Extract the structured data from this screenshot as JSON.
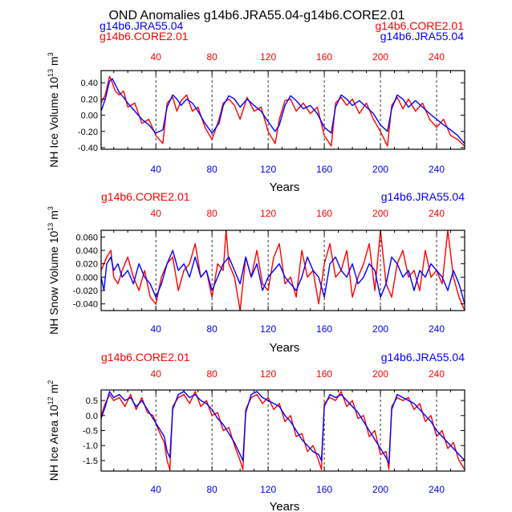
{
  "title": "OND Anomalies g14b6.JRA55.04-g14b6.CORE2.01",
  "colors": {
    "jra": "#0000ff",
    "core": "#ff0000",
    "axis": "#000000",
    "grid": "#000000"
  },
  "chart_data": [
    {
      "type": "line",
      "ylabel_main": "NH Ice Volume 10",
      "ylabel_exp": "13",
      "ylabel_unit": " m",
      "ylabel_unit_exp": "3",
      "xlabel": "Years",
      "xlim": [
        1,
        260
      ],
      "ylim": [
        -0.42,
        0.55
      ],
      "yticks": [
        0.4,
        0.2,
        0.0,
        -0.2,
        -0.4
      ],
      "yticklabels": [
        "0.40",
        "0.20",
        "0.00",
        "-0.20",
        "-0.40"
      ],
      "xticks": [
        40,
        80,
        120,
        160,
        200,
        240
      ],
      "xticklabels": [
        "40",
        "80",
        "120",
        "160",
        "200",
        "240"
      ],
      "vlines": [
        40,
        80,
        120,
        160,
        200,
        240
      ],
      "legend_left": [
        "g14b6.JRA55.04",
        "g14b6.CORE2.01"
      ],
      "legend_right": [
        "g14b6.CORE2.01",
        "g14b6.JRA55.04"
      ],
      "series": [
        {
          "name": "g14b6.JRA55.04",
          "color": "#0000ff",
          "x": [
            1,
            4,
            7,
            9,
            11,
            14,
            17,
            20,
            25,
            30,
            35,
            40,
            45,
            48,
            52,
            55,
            58,
            62,
            66,
            70,
            75,
            80,
            85,
            88,
            92,
            96,
            100,
            105,
            110,
            115,
            120,
            125,
            128,
            132,
            136,
            140,
            145,
            150,
            155,
            160,
            165,
            168,
            172,
            176,
            180,
            185,
            190,
            195,
            200,
            205,
            208,
            212,
            216,
            220,
            225,
            230,
            235,
            240,
            245,
            250,
            255,
            260
          ],
          "y": [
            0.05,
            0.2,
            0.42,
            0.45,
            0.38,
            0.28,
            0.22,
            0.15,
            0.05,
            -0.05,
            -0.12,
            -0.22,
            -0.18,
            0.1,
            0.25,
            0.2,
            0.12,
            0.2,
            0.15,
            0.05,
            -0.1,
            -0.22,
            -0.1,
            0.12,
            0.24,
            0.2,
            0.1,
            0.2,
            0.12,
            0.05,
            -0.08,
            -0.2,
            -0.12,
            0.12,
            0.24,
            0.18,
            0.08,
            0.12,
            0.02,
            -0.15,
            -0.22,
            0.1,
            0.25,
            0.2,
            0.12,
            0.18,
            0.1,
            0.02,
            -0.12,
            -0.2,
            0.08,
            0.25,
            0.2,
            0.1,
            0.18,
            0.1,
            0.02,
            -0.05,
            -0.12,
            -0.18,
            -0.25,
            -0.35
          ]
        },
        {
          "name": "g14b6.CORE2.01",
          "color": "#ff0000",
          "x": [
            1,
            4,
            7,
            9,
            11,
            14,
            17,
            20,
            25,
            30,
            35,
            40,
            45,
            48,
            52,
            55,
            58,
            62,
            66,
            70,
            75,
            80,
            85,
            88,
            92,
            96,
            100,
            105,
            110,
            115,
            120,
            125,
            128,
            132,
            136,
            140,
            145,
            150,
            155,
            160,
            165,
            168,
            172,
            176,
            180,
            185,
            190,
            195,
            200,
            205,
            208,
            212,
            216,
            220,
            225,
            230,
            235,
            240,
            245,
            250,
            255,
            260
          ],
          "y": [
            0.15,
            0.25,
            0.48,
            0.4,
            0.3,
            0.25,
            0.3,
            0.1,
            0.15,
            -0.1,
            -0.05,
            -0.25,
            -0.35,
            0.15,
            0.22,
            0.05,
            0.18,
            0.25,
            0.05,
            0.1,
            -0.15,
            -0.3,
            -0.05,
            0.15,
            0.2,
            0.12,
            -0.05,
            0.22,
            0.05,
            0.1,
            -0.2,
            -0.35,
            -0.05,
            0.18,
            0.2,
            0.05,
            0.15,
            0.02,
            0.1,
            -0.25,
            -0.38,
            0.15,
            0.22,
            0.12,
            0.2,
            0.02,
            0.15,
            -0.05,
            -0.2,
            -0.38,
            0.12,
            0.22,
            0.08,
            0.2,
            0.05,
            0.15,
            -0.05,
            -0.15,
            -0.05,
            -0.25,
            -0.3,
            -0.38
          ]
        }
      ]
    },
    {
      "type": "line",
      "ylabel_main": "NH Snow Volume 10",
      "ylabel_exp": "13",
      "ylabel_unit": " m",
      "ylabel_unit_exp": "3",
      "xlabel": "Years",
      "xlim": [
        1,
        260
      ],
      "ylim": [
        -0.05,
        0.07
      ],
      "yticks": [
        0.06,
        0.04,
        0.02,
        0.0,
        -0.02,
        -0.04
      ],
      "yticklabels": [
        "0.060",
        "0.040",
        "0.020",
        "0.000",
        "-0.020",
        "-0.040"
      ],
      "xticks": [
        40,
        80,
        120,
        160,
        200,
        240
      ],
      "xticklabels": [
        "40",
        "80",
        "120",
        "160",
        "200",
        "240"
      ],
      "vlines": [
        40,
        80,
        120,
        160,
        200,
        240
      ],
      "legend_left": [
        "g14b6.CORE2.01"
      ],
      "legend_right": [
        "g14b6.JRA55.04"
      ],
      "series": [
        {
          "name": "g14b6.JRA55.04",
          "color": "#0000ff",
          "x": [
            1,
            3,
            5,
            8,
            10,
            13,
            16,
            20,
            24,
            28,
            32,
            36,
            40,
            44,
            48,
            52,
            56,
            60,
            64,
            68,
            72,
            76,
            80,
            84,
            88,
            92,
            96,
            100,
            104,
            108,
            112,
            116,
            120,
            124,
            128,
            132,
            136,
            140,
            144,
            148,
            152,
            156,
            160,
            164,
            168,
            172,
            176,
            180,
            184,
            188,
            192,
            196,
            200,
            204,
            208,
            212,
            216,
            220,
            224,
            228,
            232,
            236,
            240,
            244,
            248,
            252,
            256,
            260
          ],
          "y": [
            0.0,
            -0.02,
            0.02,
            0.03,
            0.01,
            0.02,
            0.0,
            0.01,
            -0.01,
            0.02,
            0.0,
            -0.01,
            -0.03,
            -0.01,
            0.02,
            0.04,
            0.01,
            0.02,
            0.0,
            0.03,
            0.0,
            0.01,
            -0.02,
            0.0,
            0.02,
            0.03,
            0.01,
            -0.01,
            0.03,
            0.0,
            0.02,
            -0.02,
            0.0,
            0.01,
            0.02,
            0.0,
            -0.01,
            -0.02,
            0.0,
            0.03,
            0.01,
            0.0,
            -0.03,
            0.02,
            0.03,
            0.01,
            0.0,
            0.02,
            -0.01,
            0.0,
            0.02,
            0.01,
            -0.03,
            -0.01,
            0.03,
            0.02,
            0.0,
            0.01,
            -0.02,
            0.01,
            0.0,
            0.02,
            0.01,
            0.0,
            -0.02,
            0.01,
            -0.01,
            -0.04
          ]
        },
        {
          "name": "g14b6.CORE2.01",
          "color": "#ff0000",
          "x": [
            1,
            3,
            5,
            8,
            10,
            13,
            16,
            20,
            24,
            28,
            32,
            36,
            40,
            44,
            48,
            52,
            56,
            60,
            64,
            68,
            72,
            76,
            80,
            84,
            88,
            90,
            92,
            96,
            100,
            104,
            108,
            112,
            116,
            120,
            124,
            128,
            132,
            136,
            140,
            144,
            148,
            152,
            156,
            160,
            164,
            168,
            172,
            176,
            180,
            184,
            188,
            192,
            196,
            200,
            204,
            208,
            212,
            216,
            220,
            224,
            228,
            232,
            236,
            240,
            244,
            248,
            252,
            256,
            260
          ],
          "y": [
            0.01,
            0.02,
            0.03,
            0.04,
            0.0,
            -0.01,
            0.01,
            0.03,
            0.0,
            -0.02,
            0.01,
            -0.03,
            -0.04,
            0.0,
            0.02,
            0.03,
            -0.02,
            0.01,
            0.02,
            0.05,
            0.0,
            0.01,
            -0.03,
            0.02,
            0.01,
            0.07,
            0.02,
            0.0,
            -0.05,
            0.03,
            0.0,
            0.04,
            -0.01,
            -0.02,
            0.03,
            0.05,
            -0.01,
            0.0,
            -0.03,
            0.04,
            0.0,
            0.01,
            -0.04,
            0.02,
            0.05,
            0.0,
            0.01,
            0.04,
            -0.03,
            0.0,
            0.02,
            0.05,
            -0.02,
            0.07,
            -0.01,
            -0.03,
            0.02,
            0.04,
            0.0,
            0.01,
            -0.02,
            0.04,
            0.0,
            0.01,
            -0.01,
            0.07,
            0.0,
            -0.03,
            -0.05
          ]
        }
      ]
    },
    {
      "type": "line",
      "ylabel_main": "NH Ice Area 10",
      "ylabel_exp": "12",
      "ylabel_unit": " m",
      "ylabel_unit_exp": "2",
      "xlabel": "Years",
      "xlim": [
        1,
        260
      ],
      "ylim": [
        -1.85,
        0.85
      ],
      "yticks": [
        0.5,
        0.0,
        -0.5,
        -1.0,
        -1.5
      ],
      "yticklabels": [
        "0.5",
        "0.0",
        "-0.5",
        "-1.0",
        "-1.5"
      ],
      "xticks": [
        40,
        80,
        120,
        160,
        200,
        240
      ],
      "xticklabels": [
        "40",
        "80",
        "120",
        "160",
        "200",
        "240"
      ],
      "vlines": [
        40,
        80,
        120,
        160,
        200,
        240
      ],
      "legend_left": [
        "g14b6.CORE2.01"
      ],
      "legend_right": [
        "g14b6.JRA55.04"
      ],
      "series": [
        {
          "name": "g14b6.JRA55.04",
          "color": "#0000ff",
          "x": [
            1,
            4,
            7,
            10,
            14,
            18,
            22,
            26,
            30,
            34,
            38,
            42,
            46,
            48,
            50,
            52,
            56,
            60,
            64,
            68,
            72,
            76,
            80,
            84,
            88,
            92,
            96,
            100,
            102,
            104,
            108,
            112,
            116,
            120,
            124,
            128,
            132,
            136,
            140,
            144,
            148,
            152,
            156,
            158,
            160,
            164,
            168,
            172,
            176,
            180,
            184,
            188,
            192,
            196,
            200,
            204,
            206,
            208,
            212,
            216,
            220,
            224,
            228,
            232,
            236,
            240,
            244,
            248,
            252,
            256,
            260
          ],
          "y": [
            -0.1,
            0.3,
            0.8,
            0.6,
            0.7,
            0.5,
            0.6,
            0.3,
            0.5,
            0.2,
            -0.1,
            -0.4,
            -0.7,
            -1.2,
            -1.4,
            0.2,
            0.7,
            0.8,
            0.6,
            0.7,
            0.5,
            0.4,
            0.2,
            -0.1,
            -0.3,
            -0.6,
            -0.9,
            -1.3,
            -1.5,
            0.1,
            0.7,
            0.8,
            0.6,
            0.5,
            0.4,
            0.3,
            0.0,
            -0.2,
            -0.5,
            -0.8,
            -1.0,
            -1.2,
            -1.3,
            -1.5,
            0.3,
            0.7,
            0.6,
            0.7,
            0.5,
            0.3,
            0.1,
            -0.2,
            -0.5,
            -0.8,
            -1.1,
            -1.4,
            -1.6,
            0.2,
            0.7,
            0.6,
            0.5,
            0.4,
            0.2,
            0.0,
            -0.2,
            -0.5,
            -0.7,
            -0.9,
            -1.1,
            -1.3,
            -1.5
          ]
        },
        {
          "name": "g14b6.CORE2.01",
          "color": "#ff0000",
          "x": [
            1,
            4,
            7,
            10,
            14,
            18,
            22,
            26,
            30,
            34,
            38,
            42,
            46,
            48,
            50,
            52,
            56,
            60,
            64,
            68,
            72,
            76,
            80,
            84,
            88,
            92,
            96,
            100,
            102,
            104,
            108,
            112,
            116,
            120,
            124,
            128,
            132,
            136,
            140,
            144,
            148,
            152,
            156,
            158,
            160,
            164,
            168,
            172,
            176,
            180,
            184,
            188,
            192,
            196,
            200,
            204,
            206,
            208,
            212,
            216,
            220,
            224,
            228,
            232,
            236,
            240,
            244,
            248,
            252,
            256,
            260
          ],
          "y": [
            0.0,
            0.4,
            0.7,
            0.5,
            0.6,
            0.3,
            0.7,
            0.2,
            0.6,
            0.1,
            0.0,
            -0.5,
            -0.9,
            -1.5,
            -1.8,
            0.3,
            0.6,
            0.7,
            0.4,
            0.8,
            0.3,
            0.5,
            0.0,
            0.1,
            -0.5,
            -0.4,
            -1.0,
            -1.5,
            -1.8,
            0.2,
            0.6,
            0.7,
            0.4,
            0.6,
            0.2,
            0.4,
            -0.2,
            0.0,
            -0.7,
            -0.6,
            -1.2,
            -1.0,
            -1.5,
            -1.8,
            0.4,
            0.6,
            0.5,
            0.8,
            0.3,
            0.5,
            -0.1,
            0.0,
            -0.7,
            -0.5,
            -1.3,
            -1.2,
            -1.8,
            0.3,
            0.6,
            0.5,
            0.6,
            0.2,
            0.4,
            -0.2,
            0.0,
            -0.7,
            -0.5,
            -1.1,
            -0.9,
            -1.5,
            -1.8
          ]
        }
      ]
    }
  ]
}
